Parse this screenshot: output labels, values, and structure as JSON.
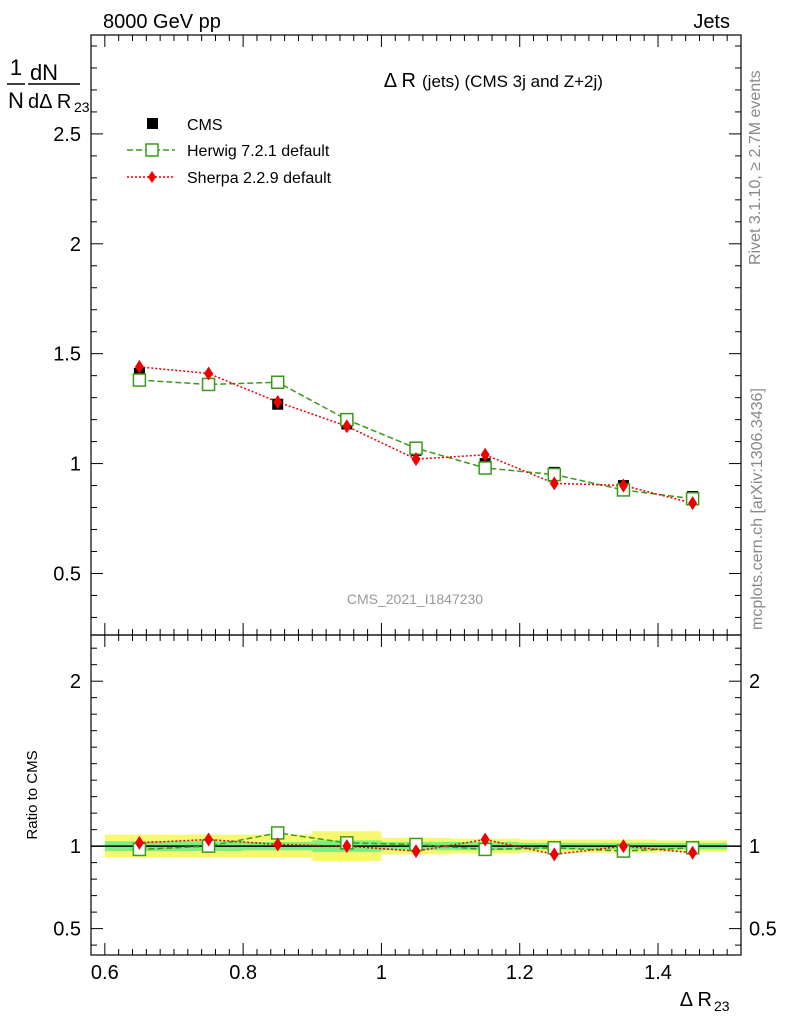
{
  "header": {
    "left": "8000 GeV pp",
    "right": "Jets"
  },
  "side_labels": {
    "rivet": "Rivet 3.1.10, ≥ 2.7M events",
    "mcplots": "mcplots.cern.ch [arXiv:1306.3436]"
  },
  "watermark": "CMS_2021_I1847230",
  "colors": {
    "cms": "#000000",
    "herwig": "#3a9a1a",
    "sherpa": "#ee0000",
    "band_inner": "#7cf07c",
    "band_outer": "#f8f870"
  },
  "chart_data": [
    {
      "type": "scatter",
      "title_parts": {
        "main": "Δ R",
        "sub": "(jets) (CMS 3j and Z+2j)"
      },
      "ylabel": {
        "frac_num": "1",
        "frac_den": "N",
        "d_num": "dN",
        "d_den": "dΔ R",
        "sub": "23"
      },
      "xlim": [
        0.58,
        1.52
      ],
      "ylim": [
        0.22,
        2.95
      ],
      "yticks": [
        0.5,
        1,
        1.5,
        2,
        2.5
      ],
      "ytick_labels": [
        "0.5",
        "1",
        "1.5",
        "2",
        "2.5"
      ],
      "legend": [
        "CMS",
        "Herwig 7.2.1 default",
        "Sherpa 2.2.9 default"
      ],
      "legend_position": "top-left",
      "x": [
        0.65,
        0.75,
        0.85,
        0.95,
        1.05,
        1.15,
        1.25,
        1.35,
        1.45
      ],
      "series": [
        {
          "name": "CMS",
          "marker": "square",
          "values": [
            1.41,
            1.36,
            1.27,
            1.18,
            1.06,
            1.0,
            0.96,
            0.9,
            0.85
          ],
          "errors": [
            0.03,
            0.03,
            0.02,
            0.02,
            0.02,
            0.02,
            0.015,
            0.015,
            0.015
          ]
        },
        {
          "name": "Herwig 7.2.1 default",
          "marker": "open-square",
          "values": [
            1.38,
            1.36,
            1.37,
            1.2,
            1.07,
            0.98,
            0.95,
            0.88,
            0.84
          ],
          "errors": [
            0.02,
            0.02,
            0.02,
            0.02,
            0.015,
            0.015,
            0.015,
            0.01,
            0.01
          ]
        },
        {
          "name": "Sherpa 2.2.9 default",
          "marker": "diamond",
          "values": [
            1.44,
            1.41,
            1.28,
            1.17,
            1.02,
            1.04,
            0.91,
            0.9,
            0.82
          ],
          "errors": [
            0.025,
            0.02,
            0.02,
            0.02,
            0.015,
            0.015,
            0.015,
            0.01,
            0.01
          ]
        }
      ]
    },
    {
      "type": "scatter",
      "ylabel": "Ratio to CMS",
      "xlabel": {
        "main": "Δ R",
        "sub": "23"
      },
      "xlim": [
        0.58,
        1.52
      ],
      "ylim": [
        0.34,
        2.28
      ],
      "xticks": [
        0.6,
        0.8,
        1.0,
        1.2,
        1.4
      ],
      "xtick_labels": [
        "0.6",
        "0.8",
        "1",
        "1.2",
        "1.4"
      ],
      "yticks": [
        0.5,
        1,
        2
      ],
      "ytick_labels": [
        "0.5",
        "1",
        "2"
      ],
      "bins": [
        0.6,
        0.7,
        0.8,
        0.9,
        1.0,
        1.1,
        1.2,
        1.3,
        1.4,
        1.5
      ],
      "band_inner": [
        0.03,
        0.03,
        0.025,
        0.035,
        0.025,
        0.025,
        0.02,
        0.02,
        0.02
      ],
      "band_outer": [
        0.07,
        0.07,
        0.07,
        0.09,
        0.05,
        0.045,
        0.04,
        0.04,
        0.035
      ],
      "x": [
        0.65,
        0.75,
        0.85,
        0.95,
        1.05,
        1.15,
        1.25,
        1.35,
        1.45
      ],
      "series": [
        {
          "name": "Herwig 7.2.1 default",
          "values": [
            0.98,
            1.0,
            1.08,
            1.02,
            1.01,
            0.98,
            0.99,
            0.97,
            0.99
          ]
        },
        {
          "name": "Sherpa 2.2.9 default",
          "values": [
            1.02,
            1.04,
            1.01,
            1.0,
            0.97,
            1.04,
            0.95,
            1.0,
            0.96
          ]
        }
      ]
    }
  ]
}
